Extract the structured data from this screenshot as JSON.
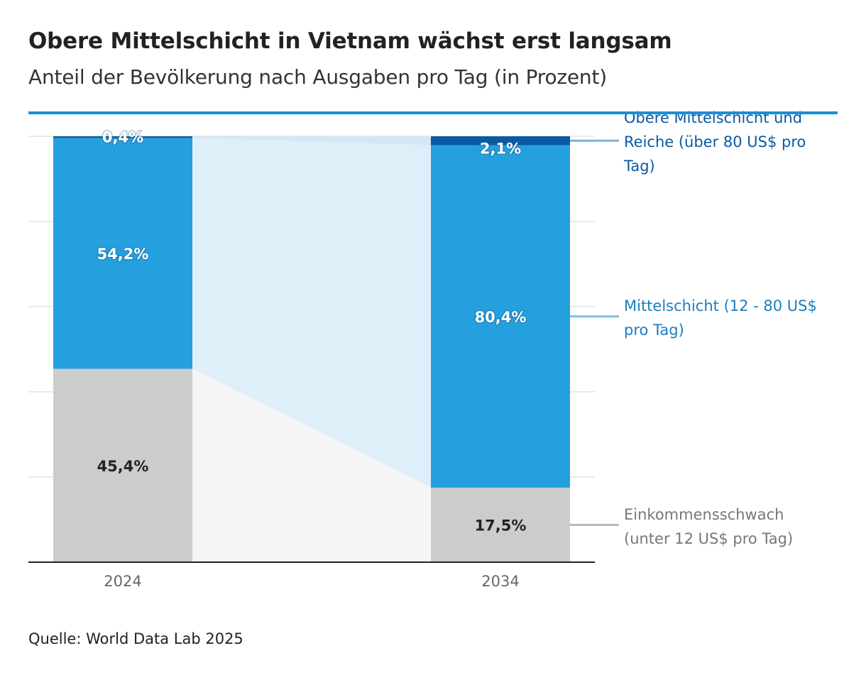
{
  "header": {
    "title": "Obere Mittelschicht in Vietnam wächst erst langsam",
    "subtitle": "Anteil der Bevölkerung nach Ausgaben pro Tag (in Prozent)"
  },
  "footer": {
    "source": "Quelle: World Data Lab 2025"
  },
  "colors": {
    "upper": "#0a5aa3",
    "middle": "#25a0de",
    "low": "#cccccc",
    "upper_label": "#0a5aa3",
    "middle_label": "#1a7fc0",
    "low_label": "#777777",
    "middle_band": "#dfeff9",
    "low_band": "#f5f5f5",
    "accent_line": "#1a8fd6"
  },
  "chart_data": {
    "type": "bar",
    "stacked": true,
    "title": "Obere Mittelschicht in Vietnam wächst erst langsam",
    "subtitle": "Anteil der Bevölkerung nach Ausgaben pro Tag (in Prozent)",
    "categories": [
      "2024",
      "2034"
    ],
    "ylim": [
      0,
      100
    ],
    "grid": true,
    "series": [
      {
        "name": "Einkommensschwach (unter 12 US$ pro Tag)",
        "key": "low",
        "values": [
          45.4,
          17.5
        ],
        "labels": [
          "45,4%",
          "17,5%"
        ]
      },
      {
        "name": "Mittelschicht (12 - 80 US$ pro Tag)",
        "key": "middle",
        "values": [
          54.2,
          80.4
        ],
        "labels": [
          "54,2%",
          "80,4%"
        ]
      },
      {
        "name": "Obere Mittelschicht und Reiche (über 80 US$ pro Tag)",
        "key": "upper",
        "values": [
          0.4,
          2.1
        ],
        "labels": [
          "0,4%",
          "2,1%"
        ]
      }
    ],
    "legend": {
      "placement": "right",
      "upper_lines": [
        "Obere Mittelschicht und",
        "Reiche (über 80 US$ pro",
        "Tag)"
      ],
      "middle_lines": [
        "Mittelschicht (12 - 80 US$",
        "pro Tag)"
      ],
      "low_lines": [
        "Einkommensschwach",
        "(unter 12 US$ pro Tag)"
      ]
    }
  }
}
